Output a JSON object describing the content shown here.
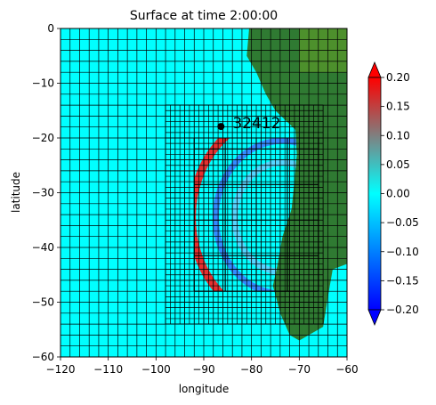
{
  "chart_data": {
    "type": "heatmap",
    "title": "Surface at time 2:00:00",
    "xlabel": "longitude",
    "ylabel": "latitude",
    "xlim": [
      -120,
      -60
    ],
    "ylim": [
      -60,
      0
    ],
    "xticks": [
      -120,
      -110,
      -100,
      -90,
      -80,
      -70,
      -60
    ],
    "yticks": [
      0,
      -10,
      -20,
      -30,
      -40,
      -50,
      -60
    ],
    "colorbar": {
      "min": -0.2,
      "max": 0.2,
      "ticks": [
        "0.20",
        "0.15",
        "0.10",
        "0.05",
        "0.00",
        "−0.05",
        "−0.10",
        "−0.15",
        "−0.20"
      ],
      "extend": "both",
      "colors": [
        "#0000ff",
        "#00ffff",
        "#ff0000"
      ]
    },
    "gauge": {
      "label": "32412",
      "lon": -86.4,
      "lat": -17.9
    },
    "land_color": "#2f7a32",
    "ocean_color": "#00ffff",
    "grid_levels": [
      {
        "level": 1,
        "extent": [
          -120,
          -60,
          -60,
          0
        ],
        "spacing": 2
      },
      {
        "level": 2,
        "extent": [
          -98,
          -65,
          -54,
          -14
        ],
        "spacing": 1
      },
      {
        "level": 3,
        "extent": [
          -92,
          -66,
          -48,
          -20
        ],
        "spacing": 0.5
      },
      {
        "level": 4,
        "extent": [
          -92,
          -66,
          -48,
          -20
        ],
        "spacing": 6.5
      }
    ],
    "wave_fronts": [
      {
        "center_lon": -73.5,
        "center_lat": -34.5,
        "radius_deg": 19,
        "amplitude": 0.2
      },
      {
        "center_lon": -73.5,
        "center_lat": -34.5,
        "radius_deg": 14,
        "amplitude": -0.12
      },
      {
        "center_lon": -73.5,
        "center_lat": -34.5,
        "radius_deg": 10,
        "amplitude": 0.05
      }
    ]
  }
}
